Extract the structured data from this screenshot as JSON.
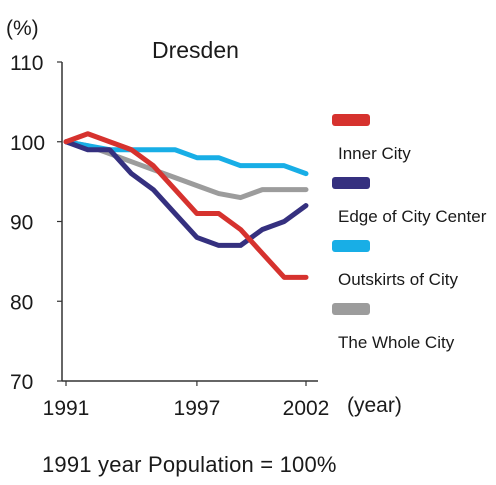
{
  "y_unit": "(%)",
  "x_unit": "(year)",
  "footnote": "1991 year Population = 100%",
  "chart_data": {
    "type": "line",
    "title": "Dresden",
    "xlabel": "(year)",
    "ylabel": "(%)",
    "xlim": [
      1991,
      2002
    ],
    "ylim": [
      70,
      110
    ],
    "x_ticks": [
      "1991",
      "1997",
      "2002"
    ],
    "y_ticks": [
      "70",
      "80",
      "90",
      "100",
      "110"
    ],
    "grid": false,
    "legend_position": "right",
    "x": [
      1991,
      1992,
      1993,
      1994,
      1995,
      1996,
      1997,
      1998,
      1999,
      2000,
      2001,
      2002
    ],
    "series": [
      {
        "name": "Inner City",
        "color": "#d6322e",
        "values": [
          100,
          101,
          100,
          99,
          97,
          94,
          91,
          91,
          89,
          86,
          83,
          83
        ]
      },
      {
        "name": "Edge of City Center",
        "color": "#35307f",
        "values": [
          100,
          99,
          99,
          96,
          94,
          91,
          88,
          87,
          87,
          89,
          90,
          92
        ]
      },
      {
        "name": "Outskirts of City",
        "color": "#18aee6",
        "values": [
          100,
          99.5,
          99,
          99,
          99,
          99,
          98,
          98,
          97,
          97,
          97,
          96
        ]
      },
      {
        "name": "The Whole City",
        "color": "#9c9c9c",
        "values": [
          100,
          99.5,
          98.5,
          97.5,
          96.5,
          95.5,
          94.5,
          93.5,
          93,
          94,
          94,
          94
        ]
      }
    ]
  }
}
